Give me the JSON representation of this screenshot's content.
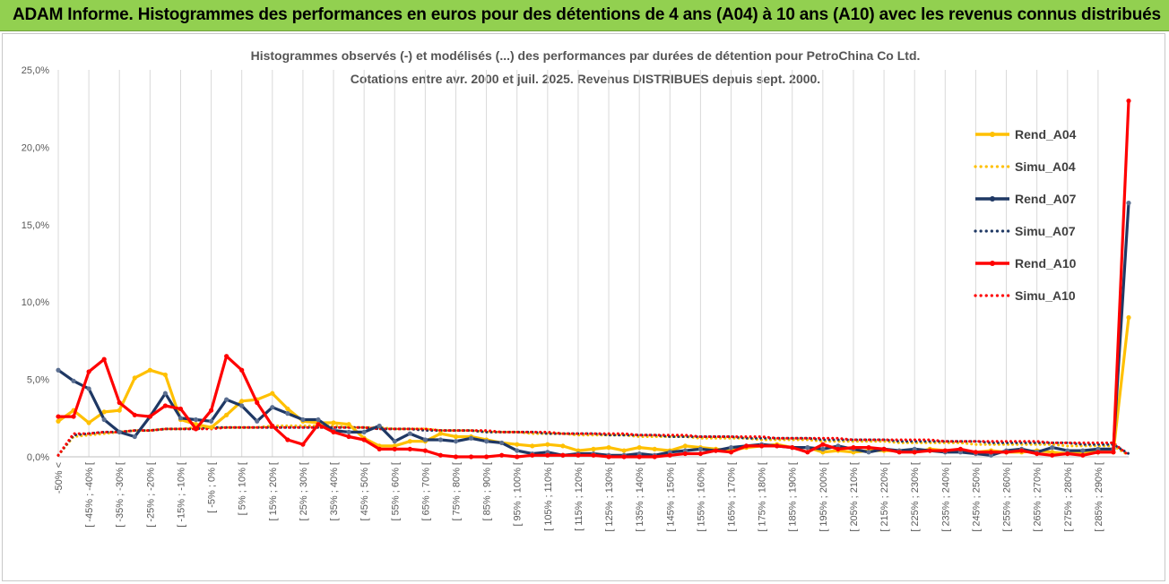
{
  "banner": {
    "title": "ADAM Informe. Histogrammes des performances en euros pour des détentions de 4 ans (A04) à 10 ans (A10) avec les revenus connus distribués"
  },
  "chart_data": {
    "type": "line",
    "title": "Histogrammes observés (-) et modélisés (...) des performances par durées de détention pour PetroChina Co Ltd.",
    "subtitle": "Cotations entre avr. 2000 et juil. 2025. Revenus DISTRIBUES depuis sept. 2000.",
    "xlabel": "",
    "ylabel": "",
    "ylim": [
      0,
      25
    ],
    "y_ticks": [
      "0,0%",
      "5,0%",
      "10,0%",
      "15,0%",
      "20,0%",
      "25,0%"
    ],
    "grid": "vertical",
    "legend_position": "right",
    "categories": [
      "-50% <",
      "[ -50% ; -45% [",
      "[ -45% ; -40% [",
      "[ -40% ; -35% [",
      "[ -35% ; -30% [",
      "[ -30% ; -25% [",
      "[ -25% ; -20% [",
      "[ -20% ; -15% [",
      "[ -15% ; -10% [",
      "[ -10% ; -5% [",
      "[ -5% ; 0% [",
      "[ 0% ; 5% [",
      "[ 5% ; 10% [",
      "[ 10% ; 15% [",
      "[ 15% ; 20% [",
      "[ 20% ; 25% [",
      "[ 25% ; 30% [",
      "[ 30% ; 35% [",
      "[ 35% ; 40% [",
      "[ 40% ; 45% [",
      "[ 45% ; 50% [",
      "[ 50% ; 55% [",
      "[ 55% ; 60% [",
      "[ 60% ; 65% [",
      "[ 65% ; 70% [",
      "[ 70% ; 75% [",
      "[ 75% ; 80% [",
      "[ 80% ; 85% [",
      "[ 85% ; 90% [",
      "[ 90% ; 95% [",
      "[ 95% ; 100% [",
      "[ 100% ; 105% [",
      "[ 105% ; 110% [",
      "[ 110% ; 115% [",
      "[ 115% ; 120% [",
      "[ 120% ; 125% [",
      "[ 125% ; 130% [",
      "[ 130% ; 135% [",
      "[ 135% ; 140% [",
      "[ 140% ; 145% [",
      "[ 145% ; 150% [",
      "[ 150% ; 155% [",
      "[ 155% ; 160% [",
      "[ 160% ; 165% [",
      "[ 165% ; 170% [",
      "[ 170% ; 175% [",
      "[ 175% ; 180% [",
      "[ 180% ; 185% [",
      "[ 185% ; 190% [",
      "[ 190% ; 195% [",
      "[ 195% ; 200% [",
      "[ 200% ; 205% [",
      "[ 205% ; 210% [",
      "[ 210% ; 215% [",
      "[ 215% ; 220% [",
      "[ 220% ; 225% [",
      "[ 225% ; 230% [",
      "[ 230% ; 235% [",
      "[ 235% ; 240% [",
      "[ 240% ; 245% [",
      "[ 245% ; 250% [",
      "[ 250% ; 255% [",
      "[ 255% ; 260% [",
      "[ 260% ; 265% [",
      "[ 265% ; 270% [",
      "[ 270% ; 275% [",
      "[ 275% ; 280% [",
      "[ 280% ; 285% [",
      "[ 285% ; 290% [",
      "[ 290% ; 295% [",
      "295% <"
    ],
    "labeled_categories": [
      "-50% <",
      "[ -45% ; -40% [",
      "[ -35% ; -30% [",
      "[ -25% ; -20% [",
      "[ -15% ; -10% [",
      "[ -5% ; 0% [",
      "[ 5% ; 10% [",
      "[ 15% ; 20% [",
      "[ 25% ; 30% [",
      "[ 35% ; 40% [",
      "[ 45% ; 50% [",
      "[ 55% ; 60% [",
      "[ 65% ; 70% [",
      "[ 75% ; 80% [",
      "[ 85% ; 90% [",
      "[ 95% ; 100% [",
      "[ 105% ; 110% [",
      "[ 115% ; 120% [",
      "[ 125% ; 130% [",
      "[ 135% ; 140% [",
      "[ 145% ; 150% [",
      "[ 155% ; 160% [",
      "[ 165% ; 170% [",
      "[ 175% ; 180% [",
      "[ 185% ; 190% [",
      "[ 195% ; 200% [",
      "[ 205% ; 210% [",
      "[ 215% ; 220% [",
      "[ 225% ; 230% [",
      "[ 235% ; 240% [",
      "[ 245% ; 250% [",
      "[ 255% ; 260% [",
      "[ 265% ; 270% [",
      "[ 275% ; 280% [",
      "[ 285% ; 290% ["
    ],
    "series": [
      {
        "name": "Rend_A04",
        "color": "#ffc000",
        "style": "solid",
        "markers": true,
        "values": [
          2.3,
          3.0,
          2.2,
          2.9,
          3.0,
          5.1,
          5.6,
          5.3,
          2.4,
          2.1,
          1.9,
          2.7,
          3.6,
          3.7,
          4.1,
          3.1,
          2.3,
          2.2,
          2.2,
          2.1,
          1.2,
          0.7,
          0.7,
          1.0,
          1.0,
          1.5,
          1.3,
          1.3,
          1.1,
          0.9,
          0.8,
          0.7,
          0.8,
          0.7,
          0.4,
          0.5,
          0.6,
          0.4,
          0.6,
          0.5,
          0.4,
          0.7,
          0.6,
          0.5,
          0.4,
          0.6,
          0.7,
          0.8,
          0.6,
          0.6,
          0.3,
          0.4,
          0.3,
          0.4,
          0.4,
          0.4,
          0.3,
          0.5,
          0.4,
          0.4,
          0.3,
          0.4,
          0.3,
          0.3,
          0.4,
          0.3,
          0.2,
          0.3,
          0.3,
          0.3,
          9.0
        ]
      },
      {
        "name": "Simu_A04",
        "color": "#ffc000",
        "style": "dotted",
        "markers": false,
        "values": [
          0.1,
          1.3,
          1.4,
          1.5,
          1.6,
          1.7,
          1.7,
          1.8,
          1.8,
          1.9,
          1.9,
          1.9,
          1.9,
          1.9,
          2.0,
          2.0,
          2.0,
          2.0,
          2.0,
          1.9,
          1.9,
          1.9,
          1.8,
          1.8,
          1.8,
          1.7,
          1.7,
          1.7,
          1.6,
          1.6,
          1.6,
          1.5,
          1.5,
          1.5,
          1.4,
          1.4,
          1.4,
          1.4,
          1.3,
          1.3,
          1.3,
          1.3,
          1.2,
          1.2,
          1.2,
          1.2,
          1.1,
          1.1,
          1.1,
          1.1,
          1.0,
          1.0,
          1.0,
          1.0,
          1.0,
          0.9,
          0.9,
          0.9,
          0.9,
          0.9,
          0.8,
          0.8,
          0.8,
          0.8,
          0.8,
          0.8,
          0.7,
          0.7,
          0.7,
          0.7,
          0.1
        ]
      },
      {
        "name": "Rend_A07",
        "color": "#1f3864",
        "style": "solid",
        "markers": true,
        "values": [
          5.6,
          4.9,
          4.4,
          2.4,
          1.6,
          1.3,
          2.6,
          4.1,
          2.5,
          2.4,
          2.3,
          3.7,
          3.3,
          2.3,
          3.2,
          2.8,
          2.4,
          2.4,
          1.7,
          1.6,
          1.6,
          2.0,
          1.0,
          1.5,
          1.1,
          1.1,
          1.0,
          1.2,
          1.0,
          0.9,
          0.4,
          0.2,
          0.3,
          0.1,
          0.2,
          0.2,
          0.1,
          0.1,
          0.2,
          0.1,
          0.3,
          0.4,
          0.5,
          0.4,
          0.6,
          0.7,
          0.8,
          0.7,
          0.6,
          0.6,
          0.5,
          0.7,
          0.5,
          0.3,
          0.5,
          0.4,
          0.5,
          0.4,
          0.3,
          0.3,
          0.2,
          0.1,
          0.4,
          0.5,
          0.3,
          0.6,
          0.4,
          0.4,
          0.5,
          0.5,
          16.4
        ]
      },
      {
        "name": "Simu_A07",
        "color": "#1f3864",
        "style": "dotted",
        "markers": false,
        "values": [
          0.1,
          1.4,
          1.5,
          1.6,
          1.6,
          1.7,
          1.7,
          1.8,
          1.8,
          1.8,
          1.9,
          1.9,
          1.9,
          1.9,
          1.9,
          1.9,
          1.9,
          1.9,
          1.9,
          1.9,
          1.9,
          1.8,
          1.8,
          1.8,
          1.7,
          1.7,
          1.7,
          1.7,
          1.6,
          1.6,
          1.6,
          1.6,
          1.5,
          1.5,
          1.5,
          1.5,
          1.4,
          1.4,
          1.4,
          1.4,
          1.3,
          1.3,
          1.3,
          1.3,
          1.3,
          1.2,
          1.2,
          1.2,
          1.2,
          1.2,
          1.1,
          1.1,
          1.1,
          1.1,
          1.1,
          1.0,
          1.0,
          1.0,
          1.0,
          1.0,
          1.0,
          0.9,
          0.9,
          0.9,
          0.9,
          0.9,
          0.9,
          0.8,
          0.8,
          0.8,
          0.2
        ]
      },
      {
        "name": "Rend_A10",
        "color": "#ff0000",
        "style": "solid",
        "markers": true,
        "values": [
          2.6,
          2.6,
          5.5,
          6.3,
          3.5,
          2.7,
          2.6,
          3.3,
          3.1,
          1.8,
          3.0,
          6.5,
          5.6,
          3.5,
          2.0,
          1.1,
          0.8,
          2.1,
          1.6,
          1.3,
          1.1,
          0.5,
          0.5,
          0.5,
          0.4,
          0.1,
          0.0,
          0.0,
          0.0,
          0.1,
          0.0,
          0.1,
          0.1,
          0.1,
          0.1,
          0.1,
          0.0,
          0.0,
          0.0,
          0.0,
          0.1,
          0.2,
          0.2,
          0.4,
          0.3,
          0.7,
          0.7,
          0.7,
          0.6,
          0.3,
          0.8,
          0.5,
          0.6,
          0.6,
          0.5,
          0.3,
          0.3,
          0.4,
          0.4,
          0.5,
          0.3,
          0.3,
          0.3,
          0.4,
          0.2,
          0.1,
          0.2,
          0.1,
          0.3,
          0.3,
          23.0
        ]
      },
      {
        "name": "Simu_A10",
        "color": "#ff0000",
        "style": "dotted",
        "markers": false,
        "values": [
          0.1,
          1.5,
          1.5,
          1.6,
          1.6,
          1.7,
          1.7,
          1.8,
          1.8,
          1.8,
          1.8,
          1.9,
          1.9,
          1.9,
          1.9,
          1.9,
          1.9,
          1.9,
          1.9,
          1.9,
          1.9,
          1.8,
          1.8,
          1.8,
          1.8,
          1.7,
          1.7,
          1.7,
          1.7,
          1.6,
          1.6,
          1.6,
          1.6,
          1.5,
          1.5,
          1.5,
          1.5,
          1.5,
          1.4,
          1.4,
          1.4,
          1.4,
          1.3,
          1.3,
          1.3,
          1.3,
          1.3,
          1.2,
          1.2,
          1.2,
          1.2,
          1.2,
          1.1,
          1.1,
          1.1,
          1.1,
          1.1,
          1.1,
          1.0,
          1.0,
          1.0,
          1.0,
          1.0,
          1.0,
          1.0,
          0.9,
          0.9,
          0.9,
          0.9,
          0.9,
          0.1
        ]
      }
    ]
  }
}
